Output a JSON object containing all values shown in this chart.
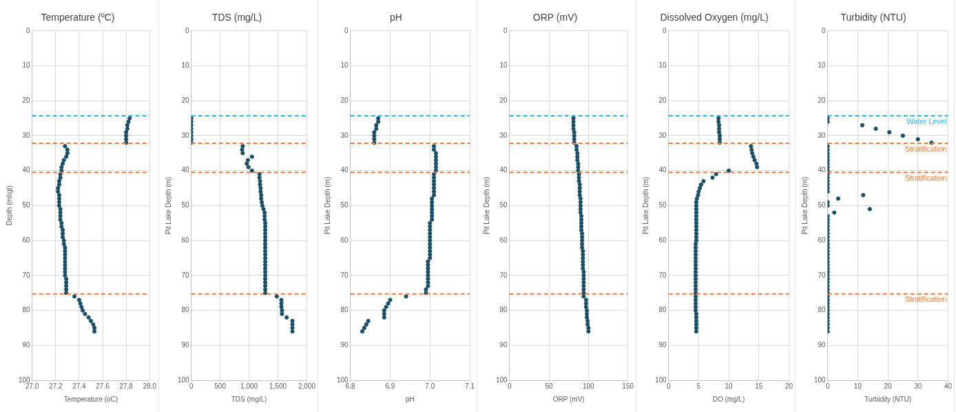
{
  "chart_data": [
    {
      "type": "scatter",
      "title": "Temperature (ºC)",
      "xlabel": "Temperature (oC)",
      "ylabel": "Depth (mbgl)",
      "xlim": [
        27.0,
        28.0
      ],
      "xticks": [
        {
          "value": 27.0,
          "label": "27.0"
        },
        {
          "value": 27.2,
          "label": "27.2"
        },
        {
          "value": 27.4,
          "label": "27.4"
        },
        {
          "value": 27.6,
          "label": "27.6"
        },
        {
          "value": 27.8,
          "label": "27.8"
        },
        {
          "value": 28.0,
          "label": "28.0"
        }
      ],
      "ylim": [
        100,
        0
      ],
      "yticks": [
        0,
        10,
        20,
        30,
        40,
        50,
        60,
        70,
        80,
        90,
        100
      ],
      "grid": true,
      "marker": "circle",
      "series": [
        {
          "color": "#1b4f66",
          "x": [
            27.83,
            27.82,
            27.81,
            27.81,
            27.8,
            27.8,
            27.8,
            27.8,
            27.28,
            27.3,
            27.3,
            27.29,
            27.27,
            27.26,
            27.25,
            27.25,
            27.24,
            27.24,
            27.23,
            27.23,
            27.22,
            27.22,
            27.23,
            27.23,
            27.23,
            27.23,
            27.24,
            27.24,
            27.24,
            27.24,
            27.25,
            27.25,
            27.26,
            27.26,
            27.26,
            27.27,
            27.27,
            27.28,
            27.28,
            27.28,
            27.28,
            27.28,
            27.28,
            27.28,
            27.28,
            27.28,
            27.29,
            27.29,
            27.29,
            27.29,
            27.29,
            27.36,
            27.4,
            27.41,
            27.42,
            27.43,
            27.45,
            27.48,
            27.5,
            27.52,
            27.53,
            27.53
          ],
          "values": [
            25,
            26,
            27,
            28,
            29,
            30,
            31,
            32,
            33,
            34,
            35,
            36,
            37,
            38,
            39,
            40,
            41,
            42,
            43,
            44,
            45,
            46,
            47,
            48,
            49,
            50,
            51,
            52,
            53,
            54,
            55,
            56,
            57,
            58,
            59,
            60,
            61,
            62,
            63,
            64,
            65,
            66,
            67,
            68,
            69,
            70,
            71,
            72,
            73,
            74,
            75,
            76,
            77,
            78,
            79,
            80,
            81,
            82,
            83,
            84,
            85,
            86
          ]
        }
      ],
      "ref_lines": [
        {
          "axis": "y",
          "value": 24.3,
          "color": "#29b4e6",
          "line_style": "dashed"
        },
        {
          "axis": "y",
          "value": 32.2,
          "color": "#f07838",
          "line_style": "dashed"
        },
        {
          "axis": "y",
          "value": 40.5,
          "color": "#f07838",
          "line_style": "dashed"
        },
        {
          "axis": "y",
          "value": 75.3,
          "color": "#f07838",
          "line_style": "dashed"
        }
      ]
    },
    {
      "type": "scatter",
      "title": "TDS (mg/L)",
      "xlabel": "TDS (mg/L)",
      "ylabel": "Pit Lake Depth (m)",
      "xlim": [
        0,
        2000
      ],
      "xticks": [
        0,
        500,
        {
          "value": 1000,
          "label": "1,000"
        },
        {
          "value": 1500,
          "label": "1,500"
        },
        {
          "value": 2000,
          "label": "2,000"
        }
      ],
      "ylim": [
        100,
        0
      ],
      "yticks": [
        0,
        10,
        20,
        30,
        40,
        50,
        60,
        70,
        80,
        90,
        100
      ],
      "grid": true,
      "marker": "circle",
      "series": [
        {
          "color": "#1b4f66",
          "x": [
            0,
            0,
            0,
            0,
            0,
            0,
            0,
            0,
            890,
            880,
            890,
            1050,
            980,
            960,
            990,
            1050,
            1180,
            1180,
            1190,
            1190,
            1200,
            1200,
            1210,
            1210,
            1220,
            1230,
            1250,
            1270,
            1270,
            1270,
            1280,
            1280,
            1280,
            1280,
            1280,
            1280,
            1280,
            1280,
            1280,
            1280,
            1280,
            1280,
            1280,
            1280,
            1280,
            1280,
            1280,
            1280,
            1280,
            1280,
            1280,
            1480,
            1560,
            1560,
            1560,
            1570,
            1570,
            1650,
            1750,
            1750,
            1750,
            1750
          ],
          "values": [
            25,
            26,
            27,
            28,
            29,
            30,
            31,
            32,
            33,
            34,
            35,
            36,
            37,
            38,
            39,
            40,
            41,
            42,
            43,
            44,
            45,
            46,
            47,
            48,
            49,
            50,
            51,
            52,
            53,
            54,
            55,
            56,
            57,
            58,
            59,
            60,
            61,
            62,
            63,
            64,
            65,
            66,
            67,
            68,
            69,
            70,
            71,
            72,
            73,
            74,
            75,
            76,
            77,
            78,
            79,
            80,
            81,
            82,
            83,
            84,
            85,
            86
          ]
        }
      ],
      "ref_lines": [
        {
          "axis": "y",
          "value": 24.3,
          "color": "#29b4e6",
          "line_style": "dashed"
        },
        {
          "axis": "y",
          "value": 32.2,
          "color": "#f07838",
          "line_style": "dashed"
        },
        {
          "axis": "y",
          "value": 40.5,
          "color": "#f07838",
          "line_style": "dashed"
        },
        {
          "axis": "y",
          "value": 75.3,
          "color": "#f07838",
          "line_style": "dashed"
        }
      ]
    },
    {
      "type": "scatter",
      "title": "pH",
      "xlabel": "pH",
      "ylabel": "Pit Lake Depth (m)",
      "xlim": [
        6.8,
        7.1
      ],
      "xticks": [
        6.8,
        6.9,
        {
          "value": 7.0,
          "label": "7.0"
        },
        7.1
      ],
      "ylim": [
        100,
        0
      ],
      "yticks": [
        0,
        10,
        20,
        30,
        40,
        50,
        60,
        70,
        80,
        90,
        100
      ],
      "grid": true,
      "marker": "circle",
      "series": [
        {
          "color": "#1b4f66",
          "x": [
            6.87,
            6.87,
            6.865,
            6.865,
            6.86,
            6.86,
            6.86,
            6.86,
            7.01,
            7.01,
            7.015,
            7.015,
            7.015,
            7.015,
            7.015,
            7.015,
            7.01,
            7.01,
            7.01,
            7.01,
            7.01,
            7.01,
            7.01,
            7.005,
            7.005,
            7.005,
            7.005,
            7.005,
            7.005,
            7.005,
            7.0,
            7.0,
            7.0,
            7.0,
            7.0,
            7.0,
            7.0,
            7.0,
            7.0,
            7.0,
            7.0,
            6.995,
            6.995,
            6.995,
            6.995,
            6.995,
            6.995,
            6.995,
            6.995,
            6.99,
            6.99,
            6.94,
            6.9,
            6.895,
            6.89,
            6.885,
            6.885,
            6.885,
            6.845,
            6.84,
            6.835,
            6.83
          ],
          "values": [
            25,
            26,
            27,
            28,
            29,
            30,
            31,
            32,
            33,
            34,
            35,
            36,
            37,
            38,
            39,
            40,
            41,
            42,
            43,
            44,
            45,
            46,
            47,
            48,
            49,
            50,
            51,
            52,
            53,
            54,
            55,
            56,
            57,
            58,
            59,
            60,
            61,
            62,
            63,
            64,
            65,
            66,
            67,
            68,
            69,
            70,
            71,
            72,
            73,
            74,
            75,
            76,
            77,
            78,
            79,
            80,
            81,
            82,
            83,
            84,
            85,
            86
          ]
        }
      ],
      "ref_lines": [
        {
          "axis": "y",
          "value": 24.3,
          "color": "#29b4e6",
          "line_style": "dashed"
        },
        {
          "axis": "y",
          "value": 32.2,
          "color": "#f07838",
          "line_style": "dashed"
        },
        {
          "axis": "y",
          "value": 40.5,
          "color": "#f07838",
          "line_style": "dashed"
        },
        {
          "axis": "y",
          "value": 75.3,
          "color": "#f07838",
          "line_style": "dashed"
        }
      ]
    },
    {
      "type": "scatter",
      "title": "ORP (mV)",
      "xlabel": "ORP (mV)",
      "ylabel": "Pit Lake Depth (m)",
      "xlim": [
        0,
        150
      ],
      "xticks": [
        0,
        50,
        100,
        150
      ],
      "ylim": [
        100,
        0
      ],
      "yticks": [
        0,
        10,
        20,
        30,
        40,
        50,
        60,
        70,
        80,
        90,
        100
      ],
      "grid": true,
      "marker": "circle",
      "series": [
        {
          "color": "#1b4f66",
          "x": [
            81,
            81,
            81,
            81,
            82,
            82,
            82,
            82,
            85,
            85,
            86,
            86,
            86,
            87,
            87,
            87,
            88,
            88,
            88,
            89,
            89,
            89,
            89,
            90,
            90,
            90,
            90,
            90,
            91,
            91,
            91,
            91,
            91,
            92,
            92,
            92,
            92,
            92,
            93,
            93,
            93,
            93,
            93,
            93,
            94,
            94,
            94,
            94,
            94,
            94,
            94,
            94,
            97,
            97,
            97,
            98,
            98,
            98,
            99,
            99,
            100,
            100
          ],
          "values": [
            25,
            26,
            27,
            28,
            29,
            30,
            31,
            32,
            33,
            34,
            35,
            36,
            37,
            38,
            39,
            40,
            41,
            42,
            43,
            44,
            45,
            46,
            47,
            48,
            49,
            50,
            51,
            52,
            53,
            54,
            55,
            56,
            57,
            58,
            59,
            60,
            61,
            62,
            63,
            64,
            65,
            66,
            67,
            68,
            69,
            70,
            71,
            72,
            73,
            74,
            75,
            76,
            77,
            78,
            79,
            80,
            81,
            82,
            83,
            84,
            85,
            86
          ]
        }
      ],
      "ref_lines": [
        {
          "axis": "y",
          "value": 24.3,
          "color": "#29b4e6",
          "line_style": "dashed"
        },
        {
          "axis": "y",
          "value": 32.2,
          "color": "#f07838",
          "line_style": "dashed"
        },
        {
          "axis": "y",
          "value": 40.5,
          "color": "#f07838",
          "line_style": "dashed"
        },
        {
          "axis": "y",
          "value": 75.3,
          "color": "#f07838",
          "line_style": "dashed"
        }
      ]
    },
    {
      "type": "scatter",
      "title": "Dissolved Oxygen (mg/L)",
      "xlabel": "DO (mg/L)",
      "ylabel": "Pit Lake Depth (m)",
      "xlim": [
        0,
        20
      ],
      "xticks": [
        0,
        5,
        10,
        15,
        20
      ],
      "ylim": [
        100,
        0
      ],
      "yticks": [
        0,
        10,
        20,
        30,
        40,
        50,
        60,
        70,
        80,
        90,
        100
      ],
      "grid": true,
      "marker": "circle",
      "series": [
        {
          "color": "#1b4f66",
          "x": [
            8.3,
            8.3,
            8.4,
            8.4,
            8.4,
            8.5,
            8.5,
            8.5,
            13.7,
            13.8,
            13.9,
            14.1,
            14.3,
            14.6,
            14.7,
            10,
            7.9,
            7.3,
            5.8,
            5.4,
            5.2,
            5,
            4.9,
            4.7,
            4.6,
            4.6,
            4.6,
            4.6,
            4.6,
            4.6,
            4.6,
            4.6,
            4.6,
            4.6,
            4.6,
            4.6,
            4.5,
            4.5,
            4.5,
            4.5,
            4.5,
            4.5,
            4.5,
            4.5,
            4.5,
            4.5,
            4.5,
            4.5,
            4.5,
            4.5,
            4.5,
            4.5,
            4.5,
            4.5,
            4.5,
            4.5,
            4.6,
            4.6,
            4.6,
            4.6,
            4.6,
            4.6
          ],
          "values": [
            25,
            26,
            27,
            28,
            29,
            30,
            31,
            32,
            33,
            34,
            35,
            36,
            37,
            38,
            39,
            40,
            41,
            42,
            43,
            44,
            45,
            46,
            47,
            48,
            49,
            50,
            51,
            52,
            53,
            54,
            55,
            56,
            57,
            58,
            59,
            60,
            61,
            62,
            63,
            64,
            65,
            66,
            67,
            68,
            69,
            70,
            71,
            72,
            73,
            74,
            75,
            76,
            77,
            78,
            79,
            80,
            81,
            82,
            83,
            84,
            85,
            86
          ]
        }
      ],
      "ref_lines": [
        {
          "axis": "y",
          "value": 24.3,
          "color": "#29b4e6",
          "line_style": "dashed"
        },
        {
          "axis": "y",
          "value": 32.2,
          "color": "#f07838",
          "line_style": "dashed"
        },
        {
          "axis": "y",
          "value": 40.5,
          "color": "#f07838",
          "line_style": "dashed"
        },
        {
          "axis": "y",
          "value": 75.3,
          "color": "#f07838",
          "line_style": "dashed"
        }
      ]
    },
    {
      "type": "scatter",
      "title": "Turbidity (NTU)",
      "xlabel": "Turbidity (NTU)",
      "ylabel": "Pit Lake Depth (m)",
      "xlim": [
        0,
        40
      ],
      "xticks": [
        0,
        10,
        20,
        30,
        40
      ],
      "ylim": [
        100,
        0
      ],
      "yticks": [
        0,
        10,
        20,
        30,
        40,
        50,
        60,
        70,
        80,
        90,
        100
      ],
      "grid": true,
      "marker": "circle",
      "series": [
        {
          "color": "#1b4f66",
          "x": [
            0,
            0,
            11.5,
            16,
            20.5,
            25,
            30,
            34.5,
            0,
            0,
            0,
            0,
            0,
            0,
            0,
            0,
            0,
            0,
            0,
            0,
            0,
            0,
            11.8,
            3.5,
            0,
            0,
            14,
            2.2,
            0,
            0,
            0,
            0,
            0,
            0,
            0,
            0,
            0,
            0,
            0,
            0,
            0,
            0,
            0,
            0,
            0,
            0,
            0,
            0,
            0,
            0,
            0,
            0,
            0,
            0,
            0,
            0,
            0,
            0,
            0,
            0,
            0,
            0
          ],
          "values": [
            25,
            26,
            27,
            28,
            29,
            30,
            31,
            32,
            33,
            34,
            35,
            36,
            37,
            38,
            39,
            40,
            41,
            42,
            43,
            44,
            45,
            46,
            47,
            48,
            49,
            50,
            51,
            52,
            53,
            54,
            55,
            56,
            57,
            58,
            59,
            60,
            61,
            62,
            63,
            64,
            65,
            66,
            67,
            68,
            69,
            70,
            71,
            72,
            73,
            74,
            75,
            76,
            77,
            78,
            79,
            80,
            81,
            82,
            83,
            84,
            85,
            86
          ]
        }
      ],
      "ref_lines": [
        {
          "axis": "y",
          "value": 24.3,
          "label": "Water Level",
          "color": "#29b4e6",
          "line_style": "dashed"
        },
        {
          "axis": "y",
          "value": 32.2,
          "label": "Stratification",
          "color": "#f07838",
          "line_style": "dashed"
        },
        {
          "axis": "y",
          "value": 40.5,
          "label": "Stratification",
          "color": "#f07838",
          "line_style": "dashed"
        },
        {
          "axis": "y",
          "value": 75.3,
          "label": "Stratification",
          "color": "#f07838",
          "line_style": "dashed"
        }
      ]
    }
  ]
}
